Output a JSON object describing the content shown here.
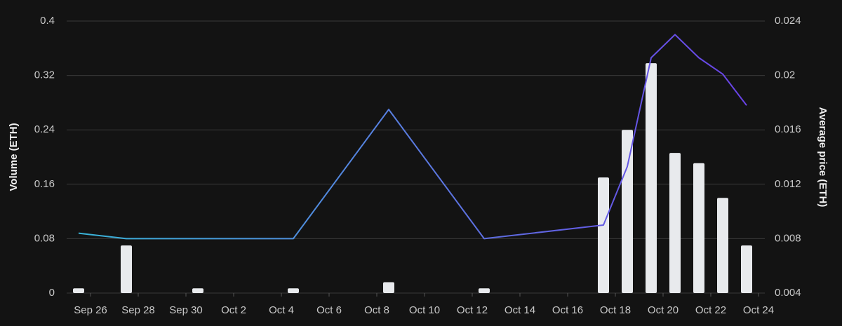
{
  "chart_data": {
    "type": "bar-line",
    "x": [
      "Sep 25",
      "Sep 27",
      "Sep 30",
      "Oct 4",
      "Oct 8",
      "Oct 12",
      "Oct 17",
      "Oct 18",
      "Oct 19",
      "Oct 20",
      "Oct 21",
      "Oct 22",
      "Oct 23"
    ],
    "xlim": [
      "Sep 25",
      "Oct 24"
    ],
    "xticks": [
      "Sep 26",
      "Sep 28",
      "Sep 30",
      "Oct 2",
      "Oct 4",
      "Oct 6",
      "Oct 8",
      "Oct 10",
      "Oct 12",
      "Oct 14",
      "Oct 16",
      "Oct 18",
      "Oct 20",
      "Oct 22",
      "Oct 24"
    ],
    "ylabel": "Volume (ETH)",
    "y2label": "Average price (ETH)",
    "ylim": [
      0,
      0.4
    ],
    "yticks": [
      0,
      0.08,
      0.16,
      0.24,
      0.32,
      0.4
    ],
    "y2lim": [
      0.004,
      0.024
    ],
    "y2ticks": [
      0.004,
      0.008,
      0.012,
      0.016,
      0.02,
      0.024
    ],
    "grid": true,
    "series": [
      {
        "type": "bar",
        "color": "#e8eaed",
        "values": [
          0.007,
          0.07,
          0.007,
          0.007,
          0.016,
          0.007,
          0.17,
          0.24,
          0.338,
          0.206,
          0.191,
          0.14,
          0.07
        ]
      },
      {
        "type": "line",
        "axis": "y2",
        "colors": [
          "#38b6d8",
          "#5a7ae0",
          "#6a3fe6"
        ],
        "values": [
          0.0084,
          0.008,
          0.008,
          0.008,
          0.0175,
          0.008,
          0.009,
          0.0133,
          0.0213,
          0.023,
          0.0213,
          0.0201,
          0.0178
        ]
      }
    ]
  }
}
